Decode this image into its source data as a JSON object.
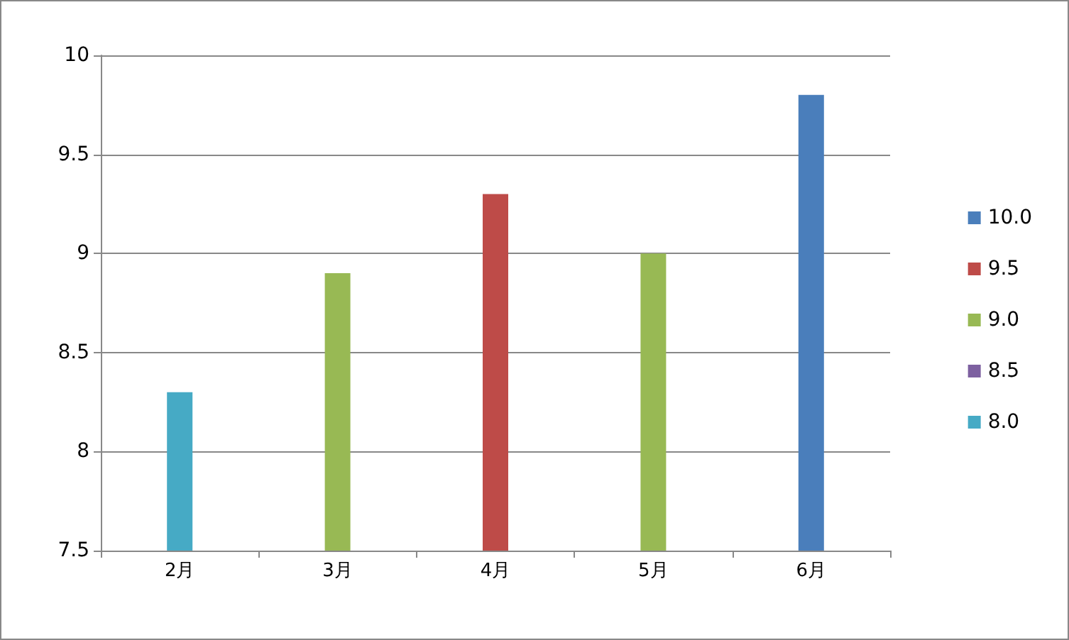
{
  "chart_data": {
    "type": "bar",
    "categories": [
      "2月",
      "3月",
      "4月",
      "5月",
      "6月"
    ],
    "stacked": true,
    "series": [
      {
        "name": "10.0",
        "color": "#4a7ebb",
        "values": [
          null,
          null,
          null,
          null,
          9.8
        ]
      },
      {
        "name": "9.5",
        "color": "#be4b48",
        "values": [
          null,
          null,
          9.3,
          null,
          null
        ]
      },
      {
        "name": "9.0",
        "color": "#98b954",
        "values": [
          null,
          8.9,
          null,
          9.0,
          null
        ]
      },
      {
        "name": "8.5",
        "color": "#7d60a0",
        "values": [
          null,
          null,
          null,
          null,
          null
        ]
      },
      {
        "name": "8.0",
        "color": "#46aac5",
        "values": [
          8.3,
          null,
          null,
          null,
          null
        ]
      }
    ],
    "ylim": [
      7.5,
      10
    ],
    "yticks": [
      7.5,
      8,
      8.5,
      9,
      9.5,
      10
    ],
    "grid": "y",
    "legend": "right"
  }
}
